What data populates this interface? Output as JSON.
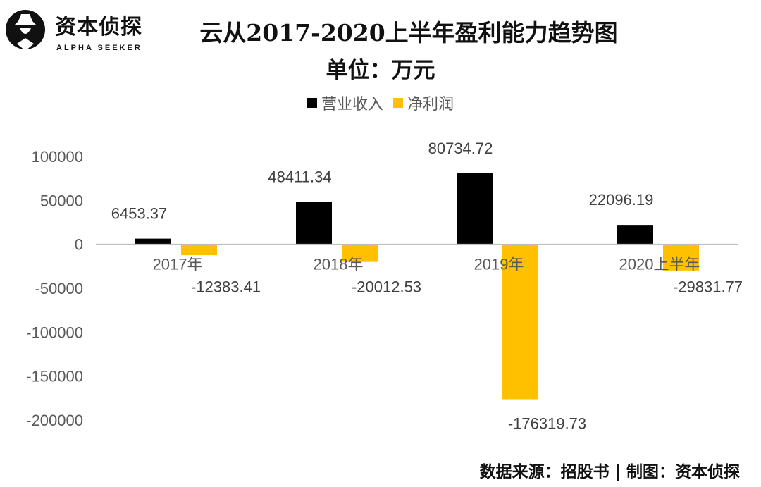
{
  "logo": {
    "name": "资本侦探",
    "subtitle": "ALPHA SEEKER"
  },
  "source": "数据来源：招股书 | 制图：资本侦探",
  "colors": {
    "revenue": "#000000",
    "net_profit": "#FFC000",
    "axis": "#BFBFBF",
    "text": "#404040"
  },
  "chart_data": {
    "type": "bar",
    "title": "云从2017-2020上半年盈利能力趋势图",
    "subtitle": "单位：万元",
    "categories": [
      "2017年",
      "2018年",
      "2019年",
      "2020上半年"
    ],
    "series": [
      {
        "name": "营业收入",
        "values": [
          6453.37,
          48411.34,
          80734.72,
          22096.19
        ],
        "labels": [
          "6453.37",
          "48411.34",
          "80734.72",
          "22096.19"
        ]
      },
      {
        "name": "净利润",
        "values": [
          -12383.41,
          -20012.53,
          -176319.73,
          -29831.77
        ],
        "labels": [
          "-12383.41",
          "-20012.53",
          "-176319.73",
          "-29831.77"
        ]
      }
    ],
    "ylim": [
      -200000,
      100000
    ],
    "yticks": [
      "100000",
      "50000",
      "0",
      "-50000",
      "-100000",
      "-150000",
      "-200000"
    ],
    "ytick_values": [
      100000,
      50000,
      0,
      -50000,
      -100000,
      -150000,
      -200000
    ],
    "grid": false,
    "legend": "top"
  }
}
